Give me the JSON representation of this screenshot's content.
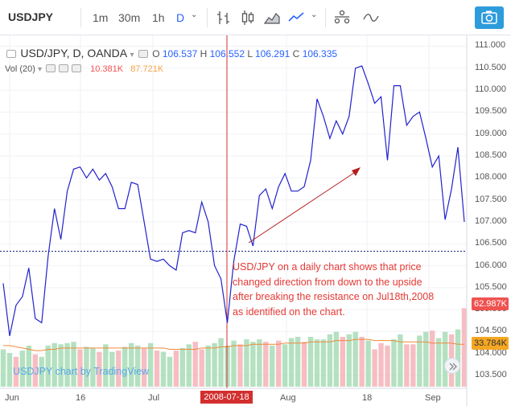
{
  "toolbar": {
    "symbol": "USDJPY",
    "intervals": [
      "1m",
      "30m",
      "1h",
      "D"
    ],
    "active_interval": "D"
  },
  "legend": {
    "title": "USD/JPY, D, OANDA",
    "o_label": "O",
    "o_value": "106.537",
    "h_label": "H",
    "h_value": "106.552",
    "l_label": "L",
    "l_value": "106.291",
    "c_label": "C",
    "c_value": "106.335",
    "vol_label": "Vol (20)",
    "vol_value": "10.381K",
    "vol_ma_value": "87.721K"
  },
  "annotation": {
    "line1": "USD/JPY on a daily chart shows that price",
    "line2": "changed direction from down to the upside",
    "line3": "after breaking the resistance on Jul18th,2008",
    "line4": "as identified on the chart."
  },
  "watermark": "USDJPY chart by TradingView",
  "price_axis": [
    "111.000",
    "110.500",
    "110.000",
    "109.500",
    "109.000",
    "108.500",
    "108.000",
    "107.500",
    "107.000",
    "106.500",
    "106.000",
    "105.500",
    "105.000",
    "104.500",
    "104.000",
    "103.500"
  ],
  "tags": {
    "vol_tag": "62.987K",
    "vol_ma_tag": "33.784K",
    "date_tag": "2008-07-18"
  },
  "time_axis": [
    "Jun",
    "16",
    "Jul",
    "Aug",
    "18",
    "Sep"
  ],
  "colors": {
    "price_line": "#2222cc",
    "vol_up": "#a7dcb5",
    "vol_down": "#f5b3b8",
    "vol_ma": "#f08a3c",
    "marker": "#d32f2f",
    "accent": "#2962ff"
  },
  "chart_data": {
    "type": "line",
    "ylim": [
      103.3,
      111.1
    ],
    "resistance_level": 106.33,
    "price": [
      105.6,
      104.4,
      105.1,
      105.3,
      105.95,
      104.8,
      104.7,
      106.2,
      107.3,
      106.6,
      107.7,
      108.2,
      108.25,
      108.0,
      108.2,
      107.95,
      108.1,
      107.8,
      107.3,
      107.3,
      107.9,
      107.85,
      107.0,
      106.15,
      106.1,
      106.15,
      106.0,
      105.9,
      106.75,
      106.8,
      106.75,
      107.45,
      107.0,
      106.0,
      105.7,
      104.7,
      106.1,
      106.95,
      106.9,
      106.45,
      107.6,
      107.75,
      107.3,
      107.8,
      108.1,
      107.7,
      107.7,
      107.8,
      108.4,
      109.8,
      109.4,
      108.9,
      109.3,
      109.0,
      109.4,
      110.5,
      110.55,
      110.15,
      109.7,
      109.85,
      108.4,
      110.1,
      110.1,
      109.2,
      109.4,
      109.5,
      108.9,
      108.25,
      108.5,
      107.05,
      107.75,
      108.7,
      107.0
    ],
    "volume_up": [
      true,
      true,
      false,
      true,
      true,
      false,
      true,
      true,
      true,
      true,
      true,
      true,
      false,
      true,
      true,
      false,
      true,
      true,
      false,
      true,
      true,
      true,
      false,
      true,
      false,
      true,
      true,
      false,
      true,
      true,
      false,
      false,
      true,
      true,
      true,
      true,
      true,
      false,
      true,
      true,
      true,
      false,
      true,
      false,
      true,
      true,
      true,
      false,
      true,
      true,
      true,
      true,
      true,
      false,
      true,
      true,
      false,
      true,
      false,
      false,
      false,
      true,
      true,
      false,
      false,
      true,
      true,
      false,
      true,
      true,
      false,
      true,
      false
    ],
    "volume": [
      30,
      27,
      24,
      29,
      33,
      26,
      24,
      33,
      35,
      34,
      35,
      36,
      30,
      32,
      31,
      28,
      34,
      28,
      29,
      32,
      35,
      33,
      31,
      35,
      29,
      28,
      24,
      29,
      31,
      34,
      36,
      30,
      33,
      35,
      39,
      33,
      37,
      34,
      38,
      36,
      38,
      36,
      33,
      37,
      34,
      39,
      40,
      36,
      40,
      38,
      38,
      42,
      44,
      40,
      42,
      44,
      40,
      37,
      30,
      35,
      33,
      38,
      42,
      34,
      34,
      41,
      44,
      45,
      39,
      44,
      42,
      46,
      63
    ],
    "volume_ma": [
      33,
      33,
      32,
      31,
      30,
      29,
      29,
      30,
      30,
      31,
      31,
      31,
      31,
      31,
      31,
      31,
      31,
      31,
      31,
      31,
      31,
      31,
      31,
      31,
      31,
      31,
      30,
      30,
      30,
      30,
      30,
      31,
      31,
      31,
      32,
      32,
      33,
      33,
      33,
      34,
      34,
      34,
      34,
      34,
      35,
      35,
      35,
      35,
      36,
      36,
      36,
      36,
      37,
      37,
      37,
      38,
      38,
      38,
      37,
      37,
      37,
      37,
      36,
      36,
      36,
      36,
      36,
      35,
      35,
      35,
      35,
      34,
      34
    ]
  }
}
